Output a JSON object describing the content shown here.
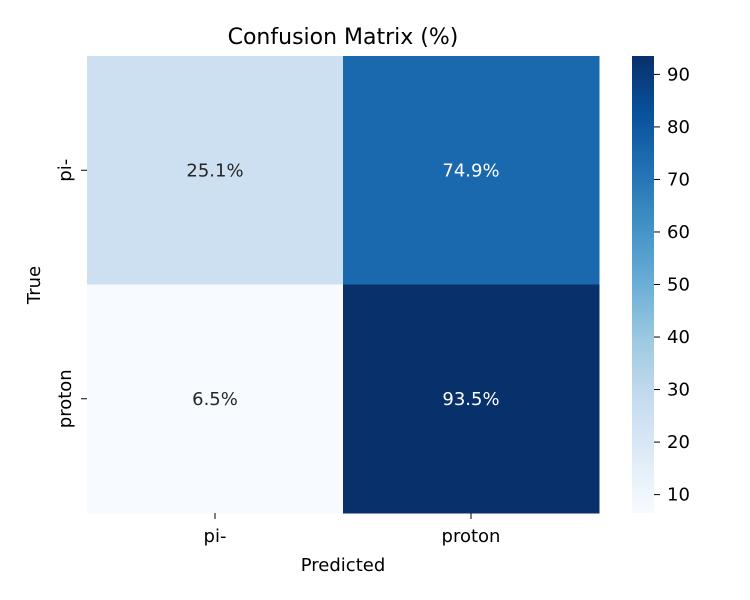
{
  "chart_data": {
    "type": "heatmap",
    "title": "Confusion Matrix (%)",
    "xlabel": "Predicted",
    "ylabel": "True",
    "x_categories": [
      "pi-",
      "proton"
    ],
    "y_categories": [
      "pi-",
      "proton"
    ],
    "values": [
      [
        25.1,
        74.9
      ],
      [
        6.5,
        93.5
      ]
    ],
    "annotations": [
      [
        "25.1%",
        "74.9%"
      ],
      [
        "6.5%",
        "93.5%"
      ]
    ],
    "colormap": "Blues",
    "colorbar": {
      "range": [
        6.5,
        93.5
      ],
      "ticks": [
        "10",
        "20",
        "30",
        "40",
        "50",
        "60",
        "70",
        "80",
        "90"
      ]
    },
    "grid": false
  }
}
